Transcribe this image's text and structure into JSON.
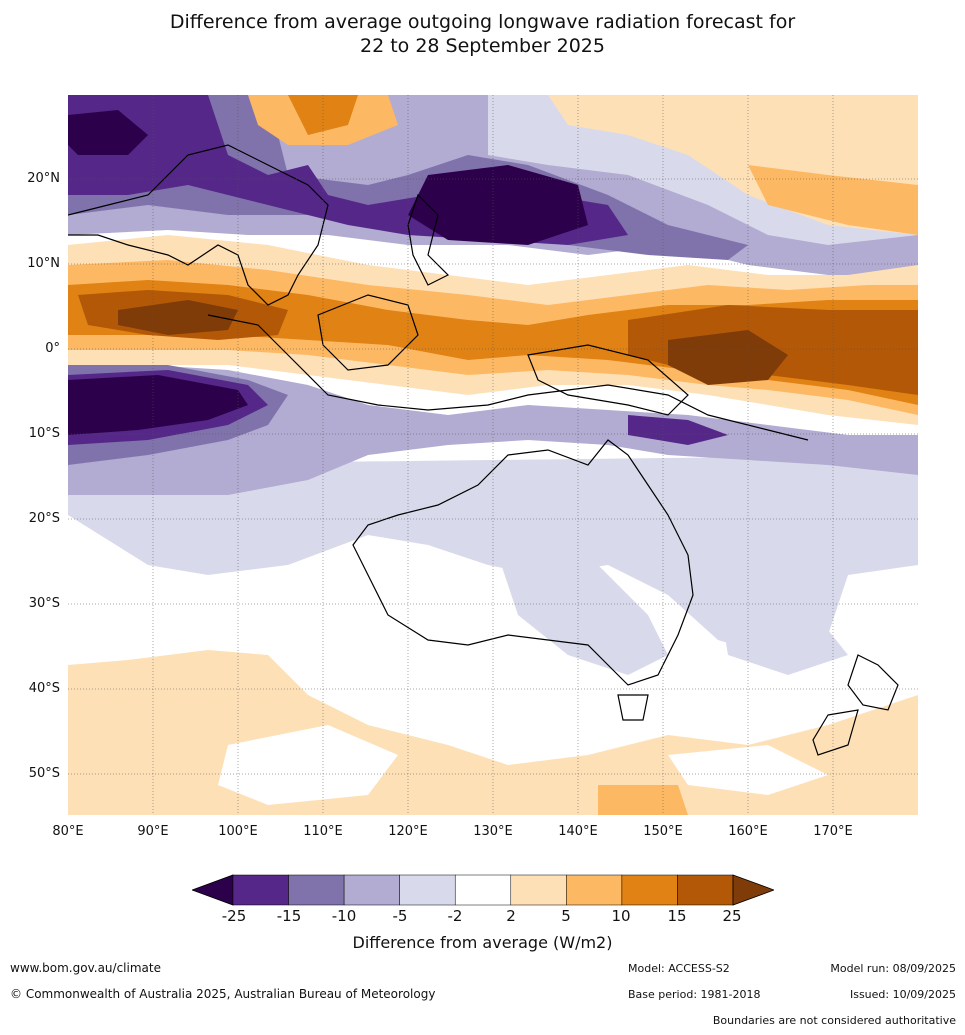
{
  "title": {
    "line1": "Difference from average outgoing longwave radiation forecast for",
    "line2": "22 to 28 September 2025"
  },
  "map": {
    "lat_labels": [
      "20°N",
      "10°N",
      "0°",
      "10°S",
      "20°S",
      "30°S",
      "40°S",
      "50°S"
    ],
    "lon_labels": [
      "80°E",
      "90°E",
      "100°E",
      "110°E",
      "120°E",
      "130°E",
      "140°E",
      "150°E",
      "160°E",
      "170°E"
    ],
    "lon_range": [
      80,
      180
    ],
    "lat_range": [
      -55,
      30
    ],
    "gridlines": true
  },
  "legend": {
    "ticks": [
      "-25",
      "-15",
      "-10",
      "-5",
      "-2",
      "2",
      "5",
      "10",
      "15",
      "25"
    ],
    "colors": [
      "#2d004b",
      "#542788",
      "#8073ac",
      "#b2abd2",
      "#d8daeb",
      "#ffffff",
      "#fee0b6",
      "#fdb863",
      "#e08214",
      "#b35806",
      "#7f3b08"
    ],
    "label": "Difference from average (W/m2)"
  },
  "footer": {
    "website": "www.bom.gov.au/climate",
    "copyright": "© Commonwealth of Australia 2025, Australian Bureau of Meteorology",
    "model": "Model: ACCESS-S2",
    "model_run": "Model run: 08/09/2025",
    "base_period": "Base period: 1981-2018",
    "issued": "Issued: 10/09/2025",
    "disclaimer": "Boundaries are not considered authoritative"
  }
}
